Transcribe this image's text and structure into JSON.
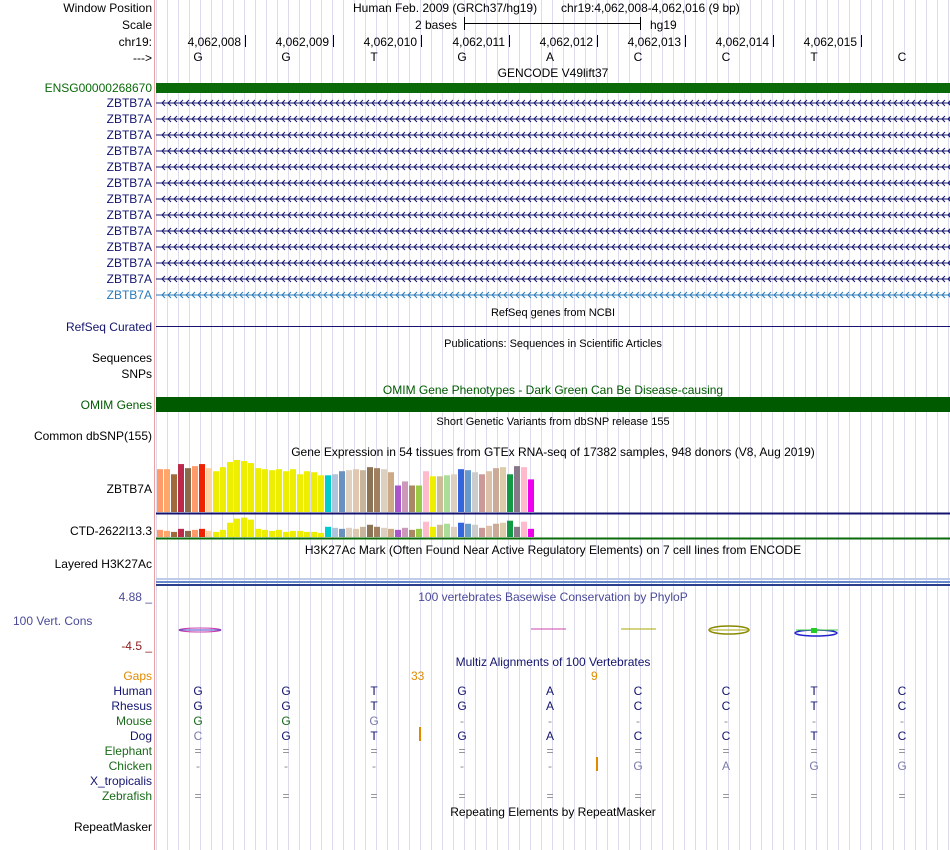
{
  "header": {
    "window_position_label": "Window Position",
    "assembly": "Human Feb. 2009 (GRCh37/hg19)",
    "position": "chr19:4,062,008-4,062,016 (9 bp)",
    "scale_label": "Scale",
    "scale_value": "2 bases",
    "db": "hg19",
    "chrom_label": "chr19:",
    "strand_label": "--->",
    "coords": [
      "4,062,008",
      "4,062,009",
      "4,062,010",
      "4,062,011",
      "4,062,012",
      "4,062,013",
      "4,062,014",
      "4,062,015"
    ],
    "bases": [
      "G",
      "G",
      "T",
      "G",
      "A",
      "C",
      "C",
      "T",
      "C"
    ]
  },
  "gencode": {
    "title": "GENCODE V49lift37",
    "gene_id": "ENSG00000268670",
    "transcripts": [
      "ZBTB7A",
      "ZBTB7A",
      "ZBTB7A",
      "ZBTB7A",
      "ZBTB7A",
      "ZBTB7A",
      "ZBTB7A",
      "ZBTB7A",
      "ZBTB7A",
      "ZBTB7A",
      "ZBTB7A",
      "ZBTB7A"
    ],
    "last_transcript": "ZBTB7A",
    "colors": {
      "gene": "#0a6a0a",
      "transcript": "#14146e",
      "last": "#2a7ab8"
    }
  },
  "refseq": {
    "title": "RefSeq genes from NCBI",
    "label": "RefSeq Curated"
  },
  "pubs": {
    "title": "Publications: Sequences in Scientific Articles",
    "label1": "Sequences",
    "label2": "SNPs"
  },
  "omim": {
    "title": "OMIM Gene Phenotypes - Dark Green Can Be Disease-causing",
    "label": "OMIM Genes",
    "color": "#005a00"
  },
  "dbsnp": {
    "title": "Short Genetic Variants from dbSNP release 155",
    "label": "Common dbSNP(155)"
  },
  "gtex": {
    "title": "Gene Expression in 54 tissues from GTEx RNA-seq of 17382 samples, 948 donors (V8, Aug 2019)",
    "gene1": "ZBTB7A",
    "gene2": "CTD-2622I13.3",
    "colors": [
      "#ff9a6a",
      "#ffa76a",
      "#a06a3a",
      "#bb2a4a",
      "#8a6a4a",
      "#ff9a6a",
      "#ee2200",
      "#ffd2a0",
      "#eeee00",
      "#eeee00",
      "#eeee00",
      "#eeee00",
      "#eeee00",
      "#eeee00",
      "#eeee00",
      "#eeee00",
      "#eeee00",
      "#eeee00",
      "#eeee00",
      "#eeee00",
      "#eeee00",
      "#eeee00",
      "#eeee00",
      "#eeee00",
      "#00cccc",
      "#b0c4de",
      "#6a92c0",
      "#e0d0c0",
      "#e0c8b0",
      "#c8b49a",
      "#8b7355",
      "#a08060",
      "#dcd0c0",
      "#ccaa88",
      "#aa55cc",
      "#cc99bb",
      "#aa8866",
      "#99cc44",
      "#ffbbcc",
      "#eeee00",
      "#ccbb99",
      "#aadd99",
      "#dcd0c0",
      "#3366dd",
      "#6699cc",
      "#cccccc",
      "#cc9999",
      "#ddc0a8",
      "#ccaa99",
      "#ddccaa",
      "#119944",
      "#887788",
      "#ffbbcc",
      "#ee00ee"
    ],
    "values1": [
      42,
      42,
      37,
      47,
      43,
      45,
      47,
      43,
      40,
      44,
      49,
      51,
      50,
      48,
      43,
      42,
      41,
      42,
      40,
      42,
      37,
      40,
      39,
      36,
      36,
      37,
      40,
      41,
      42,
      41,
      44,
      43,
      42,
      39,
      26,
      30,
      26,
      26,
      40,
      35,
      35,
      36,
      37,
      42,
      41,
      39,
      37,
      40,
      43,
      44,
      37,
      45,
      44,
      32
    ],
    "values2": [
      7,
      6,
      5,
      8,
      6,
      7,
      8,
      6,
      5,
      7,
      14,
      18,
      19,
      17,
      8,
      7,
      6,
      7,
      5,
      6,
      6,
      5,
      5,
      4,
      10,
      9,
      8,
      9,
      8,
      10,
      12,
      10,
      9,
      8,
      7,
      9,
      7,
      8,
      15,
      10,
      12,
      13,
      10,
      14,
      13,
      12,
      9,
      11,
      13,
      14,
      16,
      10,
      15,
      8
    ]
  },
  "h3k27ac": {
    "title": "H3K27Ac Mark (Often Found Near Active Regulatory Elements) on 7 cell lines from ENCODE",
    "label": "Layered H3K27Ac"
  },
  "cons": {
    "title": "100 vertebrates Basewise Conservation by PhyloP",
    "label": "100 Vert. Cons",
    "max": "4.88 _",
    "min": "-4.5 _",
    "color": "#4a4a9a",
    "min_color": "#8b1a1a"
  },
  "multiz": {
    "title": "Multiz Alignments of 100 Vertebrates",
    "gaps_label": "Gaps",
    "gap_count_1": "33",
    "gap_count_2": "9",
    "species": [
      {
        "name": "Human",
        "bases": [
          "G",
          "G",
          "T",
          "G",
          "A",
          "C",
          "C",
          "T",
          "C"
        ],
        "color": "#14146e"
      },
      {
        "name": "Rhesus",
        "bases": [
          "G",
          "G",
          "T",
          "G",
          "A",
          "C",
          "C",
          "T",
          "C"
        ],
        "color": "#14146e"
      },
      {
        "name": "Mouse",
        "bases": [
          "G",
          "G",
          "G",
          "-",
          "-",
          "-",
          "-",
          "-",
          "-"
        ],
        "color": "#1a6a1a"
      },
      {
        "name": "Dog",
        "bases": [
          "C",
          "G",
          "T",
          "G",
          "A",
          "C",
          "C",
          "T",
          "C"
        ],
        "color": "#14146e"
      },
      {
        "name": "Elephant",
        "bases": [
          "=",
          "=",
          "=",
          "=",
          "=",
          "=",
          "=",
          "=",
          "="
        ],
        "color": "#1a6a1a"
      },
      {
        "name": "Chicken",
        "bases": [
          "-",
          "-",
          "-",
          "-",
          "-",
          "G",
          "A",
          "G",
          "G"
        ],
        "color": "#1a6a1a"
      },
      {
        "name": "X_tropicalis",
        "bases": [
          "",
          "",
          "",
          "",
          "",
          "",
          "",
          "",
          ""
        ],
        "color": "#14146e"
      },
      {
        "name": "Zebrafish",
        "bases": [
          "=",
          "=",
          "=",
          "=",
          "=",
          "=",
          "=",
          "=",
          "="
        ],
        "color": "#1a6a1a"
      }
    ]
  },
  "repeatmasker": {
    "title": "Repeating Elements by RepeatMasker",
    "label": "RepeatMasker"
  }
}
